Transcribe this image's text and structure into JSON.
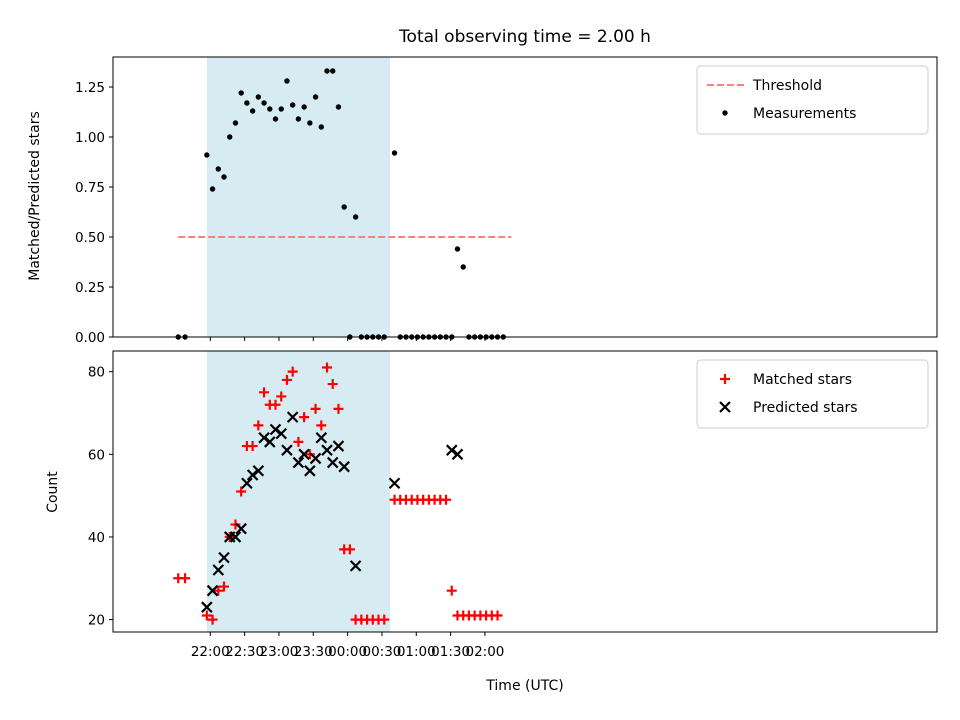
{
  "chart_data": [
    {
      "type": "scatter",
      "title": "Total observing time = 2.00 h",
      "xlabel": "",
      "ylabel": "Matched/Predicted stars",
      "ylim": [
        0,
        1.4
      ],
      "yticks": [
        "0.00",
        "0.25",
        "0.50",
        "0.75",
        "1.00",
        "1.25"
      ],
      "xticks": [
        "22:00",
        "22:30",
        "23:00",
        "23:30",
        "00:00",
        "00:30",
        "01:00",
        "01:30",
        "02:00"
      ],
      "x_unit": "time (UTC), minutes after 21:00",
      "xlim": [
        -25,
        695
      ],
      "shaded_interval": [
        "21:57",
        "00:37"
      ],
      "threshold": {
        "name": "Threshold",
        "value": 0.5,
        "x_range": [
          "21:32",
          "02:23"
        ],
        "color": "#ff7f7f"
      },
      "legend": {
        "position": "upper right",
        "entries": [
          "Threshold",
          "Measurements"
        ]
      },
      "series": [
        {
          "name": "Measurements",
          "color": "#000000",
          "points": [
            [
              "21:32",
              0.0
            ],
            [
              "21:38",
              0.0
            ],
            [
              "21:57",
              0.91
            ],
            [
              "22:02",
              0.74
            ],
            [
              "22:07",
              0.84
            ],
            [
              "22:12",
              0.8
            ],
            [
              "22:17",
              1.0
            ],
            [
              "22:22",
              1.07
            ],
            [
              "22:27",
              1.22
            ],
            [
              "22:32",
              1.17
            ],
            [
              "22:37",
              1.13
            ],
            [
              "22:42",
              1.2
            ],
            [
              "22:47",
              1.17
            ],
            [
              "22:52",
              1.14
            ],
            [
              "22:57",
              1.09
            ],
            [
              "23:02",
              1.14
            ],
            [
              "23:07",
              1.28
            ],
            [
              "23:12",
              1.16
            ],
            [
              "23:17",
              1.09
            ],
            [
              "23:22",
              1.15
            ],
            [
              "23:27",
              1.07
            ],
            [
              "23:32",
              1.2
            ],
            [
              "23:37",
              1.05
            ],
            [
              "23:42",
              1.33
            ],
            [
              "23:47",
              1.33
            ],
            [
              "23:52",
              1.15
            ],
            [
              "23:57",
              0.65
            ],
            [
              "00:02",
              0.0
            ],
            [
              "00:07",
              0.6
            ],
            [
              "00:12",
              0.0
            ],
            [
              "00:17",
              0.0
            ],
            [
              "00:22",
              0.0
            ],
            [
              "00:27",
              0.0
            ],
            [
              "00:32",
              0.0
            ],
            [
              "00:41",
              0.92
            ],
            [
              "00:46",
              0.0
            ],
            [
              "00:51",
              0.0
            ],
            [
              "00:56",
              0.0
            ],
            [
              "01:01",
              0.0
            ],
            [
              "01:06",
              0.0
            ],
            [
              "01:11",
              0.0
            ],
            [
              "01:16",
              0.0
            ],
            [
              "01:21",
              0.0
            ],
            [
              "01:26",
              0.0
            ],
            [
              "01:31",
              0.0
            ],
            [
              "01:36",
              0.44
            ],
            [
              "01:41",
              0.35
            ],
            [
              "01:46",
              0.0
            ],
            [
              "01:51",
              0.0
            ],
            [
              "01:56",
              0.0
            ],
            [
              "02:01",
              0.0
            ],
            [
              "02:06",
              0.0
            ],
            [
              "02:11",
              0.0
            ],
            [
              "02:16",
              0.0
            ]
          ]
        }
      ]
    },
    {
      "type": "scatter",
      "title": "",
      "xlabel": "Time (UTC)",
      "ylabel": "Count",
      "ylim": [
        17,
        85
      ],
      "yticks": [
        "20",
        "40",
        "60",
        "80"
      ],
      "xticks": [
        "22:00",
        "22:30",
        "23:00",
        "23:30",
        "00:00",
        "00:30",
        "01:00",
        "01:30",
        "02:00"
      ],
      "x_unit": "time (UTC), minutes after 21:00",
      "xlim": [
        -25,
        695
      ],
      "shaded_interval": [
        "21:57",
        "00:37"
      ],
      "legend": {
        "position": "upper right",
        "entries": [
          "Matched stars",
          "Predicted stars"
        ]
      },
      "series": [
        {
          "name": "Matched stars",
          "marker": "plus",
          "color": "#ff0000",
          "points": [
            [
              "21:32",
              30
            ],
            [
              "21:38",
              30
            ],
            [
              "21:57",
              21
            ],
            [
              "22:02",
              20
            ],
            [
              "22:07",
              27
            ],
            [
              "22:12",
              28
            ],
            [
              "22:17",
              40
            ],
            [
              "22:22",
              43
            ],
            [
              "22:27",
              51
            ],
            [
              "22:32",
              62
            ],
            [
              "22:37",
              62
            ],
            [
              "22:42",
              67
            ],
            [
              "22:47",
              75
            ],
            [
              "22:52",
              72
            ],
            [
              "22:57",
              72
            ],
            [
              "23:02",
              74
            ],
            [
              "23:07",
              78
            ],
            [
              "23:12",
              80
            ],
            [
              "23:17",
              63
            ],
            [
              "23:22",
              69
            ],
            [
              "23:27",
              60
            ],
            [
              "23:32",
              71
            ],
            [
              "23:37",
              67
            ],
            [
              "23:42",
              81
            ],
            [
              "23:47",
              77
            ],
            [
              "23:52",
              71
            ],
            [
              "23:57",
              37
            ],
            [
              "00:02",
              37
            ],
            [
              "00:07",
              20
            ],
            [
              "00:12",
              20
            ],
            [
              "00:17",
              20
            ],
            [
              "00:22",
              20
            ],
            [
              "00:27",
              20
            ],
            [
              "00:32",
              20
            ],
            [
              "00:41",
              49
            ],
            [
              "00:46",
              49
            ],
            [
              "00:51",
              49
            ],
            [
              "00:56",
              49
            ],
            [
              "01:01",
              49
            ],
            [
              "01:06",
              49
            ],
            [
              "01:11",
              49
            ],
            [
              "01:16",
              49
            ],
            [
              "01:21",
              49
            ],
            [
              "01:26",
              49
            ],
            [
              "01:31",
              27
            ],
            [
              "01:36",
              21
            ],
            [
              "01:41",
              21
            ],
            [
              "01:46",
              21
            ],
            [
              "01:51",
              21
            ],
            [
              "01:56",
              21
            ],
            [
              "02:01",
              21
            ],
            [
              "02:06",
              21
            ],
            [
              "02:11",
              21
            ]
          ]
        },
        {
          "name": "Predicted stars",
          "marker": "x",
          "color": "#000000",
          "points": [
            [
              "21:57",
              23
            ],
            [
              "22:02",
              27
            ],
            [
              "22:07",
              32
            ],
            [
              "22:12",
              35
            ],
            [
              "22:17",
              40
            ],
            [
              "22:22",
              40
            ],
            [
              "22:27",
              42
            ],
            [
              "22:32",
              53
            ],
            [
              "22:37",
              55
            ],
            [
              "22:42",
              56
            ],
            [
              "22:47",
              64
            ],
            [
              "22:52",
              63
            ],
            [
              "22:57",
              66
            ],
            [
              "23:02",
              65
            ],
            [
              "23:07",
              61
            ],
            [
              "23:12",
              69
            ],
            [
              "23:17",
              58
            ],
            [
              "23:22",
              60
            ],
            [
              "23:27",
              56
            ],
            [
              "23:32",
              59
            ],
            [
              "23:37",
              64
            ],
            [
              "23:42",
              61
            ],
            [
              "23:47",
              58
            ],
            [
              "23:52",
              62
            ],
            [
              "23:57",
              57
            ],
            [
              "00:07",
              33
            ],
            [
              "00:41",
              53
            ],
            [
              "01:31",
              61
            ],
            [
              "01:36",
              60
            ]
          ]
        }
      ]
    }
  ]
}
